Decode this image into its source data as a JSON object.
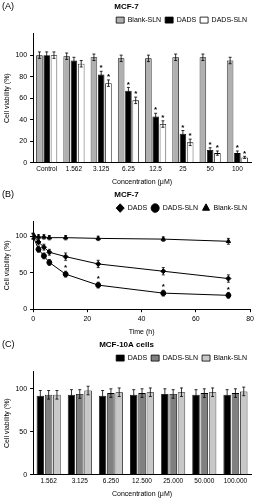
{
  "chart_data": [
    {
      "type": "bar",
      "panel_label": "(A)",
      "title": "MCF-7",
      "x_label": "Concentration (μM)",
      "y_label": "Cell viability (%)",
      "categories": [
        "Control",
        "1.562",
        "3.125",
        "6.25",
        "12.5",
        "25",
        "50",
        "100"
      ],
      "series": [
        {
          "name": "Blank-SLN",
          "color": "#b0b0b0",
          "values": [
            100,
            99,
            98,
            97,
            97,
            98,
            98,
            95
          ],
          "errors": [
            3,
            3,
            3,
            3,
            3,
            3,
            3,
            3
          ]
        },
        {
          "name": "DADS",
          "color": "#000000",
          "values": [
            100,
            95,
            82,
            67,
            43,
            27,
            12,
            9
          ],
          "errors": [
            3,
            3,
            3,
            3,
            3,
            3,
            2,
            2
          ]
        },
        {
          "name": "DADS-SLN",
          "color": "#ffffff",
          "values": [
            100,
            92,
            74,
            58,
            36,
            19,
            9,
            5
          ],
          "errors": [
            3,
            3,
            3,
            3,
            3,
            3,
            2,
            1
          ]
        }
      ],
      "annotations": [
        {
          "text": "*",
          "series": "DADS",
          "category": "3.125"
        },
        {
          "text": "*",
          "series": "DADS",
          "category": "6.25"
        },
        {
          "text": "*",
          "series": "DADS",
          "category": "12.5"
        },
        {
          "text": "*",
          "series": "DADS",
          "category": "25"
        },
        {
          "text": "*",
          "series": "DADS",
          "category": "50"
        },
        {
          "text": "*",
          "series": "DADS",
          "category": "100"
        },
        {
          "text": "*",
          "series": "DADS-SLN",
          "category": "3.125"
        },
        {
          "text": "*",
          "series": "DADS-SLN",
          "category": "6.25"
        },
        {
          "text": "*",
          "series": "DADS-SLN",
          "category": "12.5"
        },
        {
          "text": "*",
          "series": "DADS-SLN",
          "category": "25"
        },
        {
          "text": "*",
          "series": "DADS-SLN",
          "category": "50"
        },
        {
          "text": "*",
          "series": "DADS-SLN",
          "category": "100"
        }
      ],
      "ylim": [
        0,
        120
      ],
      "yticks": [
        0,
        20,
        40,
        60,
        80,
        100
      ],
      "grid": false,
      "legend": "top"
    },
    {
      "type": "line",
      "panel_label": "(B)",
      "title": "MCF-7",
      "x_label": "Time (h)",
      "y_label": "Cell viability (%)",
      "x": [
        0,
        2,
        4,
        6,
        12,
        24,
        48,
        72
      ],
      "series": [
        {
          "name": "DADS",
          "color": "#000000",
          "marker": "diamond",
          "values": [
            100,
            92,
            85,
            78,
            72,
            62,
            52,
            42
          ],
          "errors": [
            4,
            4,
            4,
            4,
            5,
            5,
            5,
            5
          ]
        },
        {
          "name": "DADS-SLN",
          "color": "#000000",
          "marker": "circle",
          "values": [
            100,
            82,
            73,
            64,
            48,
            33,
            22,
            19
          ],
          "errors": [
            4,
            4,
            4,
            4,
            4,
            4,
            4,
            4
          ]
        },
        {
          "name": "Blank-SLN",
          "color": "#000000",
          "marker": "triangle",
          "values": [
            100,
            99,
            99,
            98,
            98,
            97,
            96,
            93
          ],
          "errors": [
            3,
            3,
            3,
            3,
            3,
            3,
            3,
            4
          ]
        }
      ],
      "annotations": [
        {
          "text": "*",
          "series": "DADS-SLN",
          "x": 12
        },
        {
          "text": "*",
          "series": "DADS-SLN",
          "x": 24
        },
        {
          "text": "*",
          "series": "DADS-SLN",
          "x": 48
        },
        {
          "text": "*",
          "series": "DADS-SLN",
          "x": 72
        }
      ],
      "xlim": [
        0,
        80
      ],
      "xticks": [
        0,
        20,
        40,
        60,
        80
      ],
      "ylim": [
        0,
        120
      ],
      "yticks": [
        0,
        50,
        100
      ],
      "grid": false,
      "legend": "top"
    },
    {
      "type": "bar",
      "panel_label": "(C)",
      "title": "MCF-10A cells",
      "x_label": "Concentration (μM)",
      "y_label": "Cell viability (%)",
      "categories": [
        "1.562",
        "3.125",
        "6.250",
        "12.500",
        "25.000",
        "50.000",
        "100.000"
      ],
      "series": [
        {
          "name": "DADS",
          "color": "#000000",
          "values": [
            92,
            93,
            92,
            93,
            94,
            93,
            93
          ],
          "errors": [
            6,
            6,
            6,
            6,
            6,
            6,
            6
          ]
        },
        {
          "name": "DADS-SLN",
          "color": "#808080",
          "values": [
            93,
            94,
            95,
            95,
            94,
            95,
            95
          ],
          "errors": [
            5,
            5,
            5,
            5,
            5,
            5,
            5
          ]
        },
        {
          "name": "Blank-SLN",
          "color": "#c8c8c8",
          "values": [
            93,
            98,
            96,
            96,
            96,
            96,
            97
          ],
          "errors": [
            5,
            5,
            5,
            5,
            5,
            5,
            5
          ]
        }
      ],
      "ylim": [
        0,
        120
      ],
      "yticks": [
        0,
        50,
        100
      ],
      "grid": false,
      "legend": "top"
    }
  ]
}
